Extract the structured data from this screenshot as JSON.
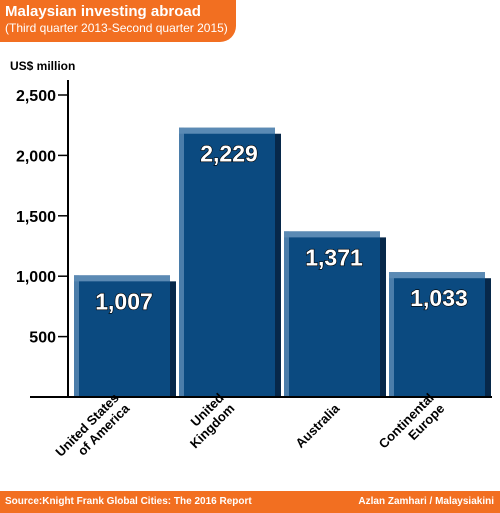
{
  "title": "Malaysian investing abroad",
  "subtitle": "(Third quarter 2013-Second quarter 2015)",
  "source": "Source:Knight Frank Global Cities: The 2016 Report",
  "credit": "Azlan Zamhari / Malaysiakini",
  "colors": {
    "header": "#f26f21",
    "bar_face": "#0b4a80",
    "bar_top": "#5b8ab4",
    "bar_shadow": "#07284a"
  },
  "chart_data": {
    "type": "bar",
    "ylabel": "US$ million",
    "ylim": [
      0,
      2500
    ],
    "yticks": [
      500,
      1000,
      1500,
      2000,
      2500
    ],
    "ytick_labels": [
      "500",
      "1,000",
      "1,500",
      "2,000",
      "2,500"
    ],
    "categories": [
      [
        "United States",
        "of America"
      ],
      [
        "United",
        "Kingdom"
      ],
      [
        "Australia"
      ],
      [
        "Continental",
        "Europe"
      ]
    ],
    "values": [
      1007,
      2229,
      1371,
      1033
    ],
    "value_labels": [
      "1,007",
      "2,229",
      "1,371",
      "1,033"
    ],
    "grid": false,
    "legend": "none"
  }
}
